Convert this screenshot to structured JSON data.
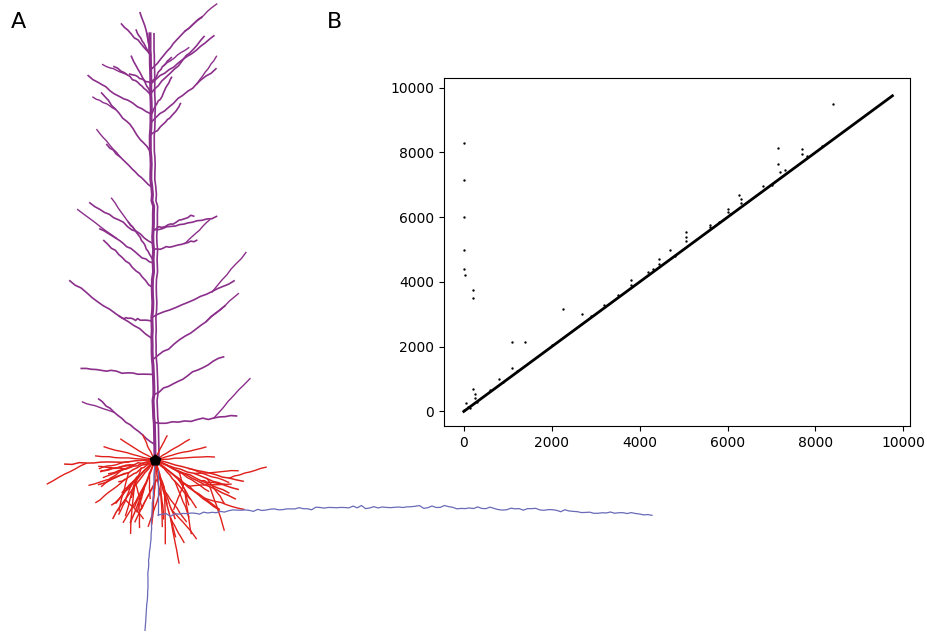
{
  "panel_labels": [
    "A",
    "B"
  ],
  "chart_data": {
    "type": "scatter",
    "xlim": [
      -450,
      10150
    ],
    "ylim": [
      -450,
      10300
    ],
    "xticks": [
      0,
      2000,
      4000,
      6000,
      8000,
      10000
    ],
    "yticks": [
      0,
      2000,
      4000,
      6000,
      8000,
      10000
    ],
    "grid": false,
    "series": [
      {
        "type": "scatter",
        "color": "#000000",
        "marker": "dot",
        "x": [
          0,
          0,
          0,
          0,
          0,
          30,
          200,
          200,
          200,
          250,
          250,
          100,
          0,
          50,
          600,
          800,
          900,
          1100,
          1100,
          1200,
          1400,
          2000,
          2250,
          2700,
          2900,
          3200,
          3500,
          3800,
          3800,
          4200,
          4300,
          4450,
          4450,
          4700,
          4800,
          5050,
          5050,
          5050,
          5600,
          5600,
          5800,
          6000,
          6000,
          6050,
          6250,
          6300,
          6300,
          6800,
          7000,
          7150,
          7150,
          7200,
          7300,
          7700,
          7700,
          7800,
          8150,
          8400,
          150,
          300
        ],
        "values": [
          8300,
          7150,
          6000,
          5000,
          4400,
          4200,
          3750,
          3500,
          700,
          550,
          400,
          150,
          50,
          250,
          650,
          1000,
          900,
          2150,
          1350,
          1250,
          2150,
          2050,
          3150,
          3000,
          2950,
          3300,
          3600,
          4050,
          3900,
          4300,
          4400,
          4700,
          4550,
          5000,
          4800,
          5550,
          5400,
          5250,
          5750,
          5700,
          5850,
          6250,
          6150,
          6100,
          6700,
          6550,
          6450,
          6950,
          7000,
          8150,
          7650,
          7400,
          7450,
          8100,
          7950,
          7900,
          8200,
          9500,
          100,
          300
        ]
      },
      {
        "type": "line",
        "color": "#000000",
        "line_style": "solid",
        "x": [
          0,
          9750
        ],
        "values": [
          0,
          9750
        ]
      }
    ]
  }
}
